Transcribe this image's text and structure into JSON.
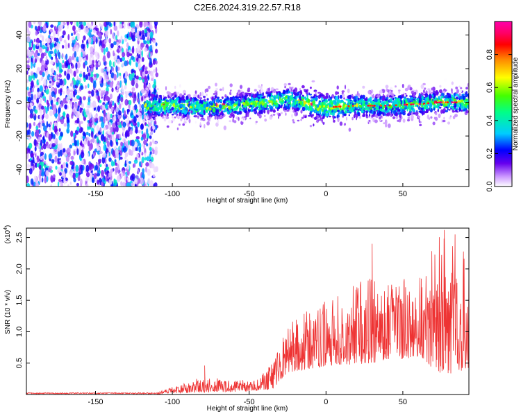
{
  "figure": {
    "title": "C2E6.2024.319.22.57.R18"
  },
  "chart_data": [
    {
      "type": "heatmap",
      "title": "C2E6.2024.319.22.57.R18",
      "xlabel": "Height of straight line (km)",
      "ylabel": "Frequency (Hz)",
      "xlim": [
        -195,
        93
      ],
      "ylim": [
        -50,
        48
      ],
      "xticks": [
        -150,
        -100,
        -50,
        0,
        50
      ],
      "yticks": [
        -40,
        -20,
        0,
        20,
        40
      ],
      "colorbar": {
        "label": "Normalized spectral amplitude",
        "range": [
          0,
          1
        ],
        "ticks": [
          0.0,
          0.2,
          0.4,
          0.6,
          0.8
        ],
        "colormap": [
          "#ffffff",
          "#cc99ff",
          "#6600ee",
          "#0000ff",
          "#00ccff",
          "#00ff88",
          "#44ff00",
          "#ffff00",
          "#ff8800",
          "#ff0000",
          "#ff0066",
          "#ff00aa"
        ]
      },
      "regions": [
        {
          "name": "noise",
          "x": [
            -195,
            -110
          ],
          "y": [
            -50,
            48
          ],
          "amplitude": 0.15
        },
        {
          "name": "signal-ridge",
          "x": [
            -118,
            93
          ],
          "y": [
            -5,
            3
          ],
          "amplitude_peak": 0.9
        }
      ],
      "ridge_center": [
        [
          -118,
          -2
        ],
        [
          -100,
          -2
        ],
        [
          -80,
          -3
        ],
        [
          -60,
          -2
        ],
        [
          -40,
          0
        ],
        [
          -25,
          2
        ],
        [
          -10,
          -1
        ],
        [
          0,
          -3
        ],
        [
          20,
          -2
        ],
        [
          40,
          -2
        ],
        [
          60,
          -1
        ],
        [
          75,
          0
        ],
        [
          93,
          0
        ]
      ]
    },
    {
      "type": "line",
      "xlabel": "Height of straight line (km)",
      "ylabel": "SNR (10 * v/v)",
      "y_multiplier": "(x10^4)",
      "xlim": [
        -195,
        93
      ],
      "ylim": [
        0,
        2.65
      ],
      "xticks": [
        -150,
        -100,
        -50,
        0,
        50
      ],
      "yticks": [
        0.5,
        1.0,
        1.5,
        2.0,
        2.5
      ],
      "ytick_labels": [
        "0.5",
        "1.0",
        "1.5",
        "2.0",
        "2.5"
      ],
      "series": [
        {
          "color": "#ee3333",
          "envelope": [
            [
              -195,
              0.02
            ],
            [
              -110,
              0.03
            ],
            [
              -100,
              0.12
            ],
            [
              -80,
              0.3
            ],
            [
              -60,
              0.22
            ],
            [
              -45,
              0.25
            ],
            [
              -35,
              0.5
            ],
            [
              -25,
              1.1
            ],
            [
              -15,
              1.3
            ],
            [
              0,
              1.5
            ],
            [
              15,
              1.7
            ],
            [
              30,
              1.9
            ],
            [
              45,
              1.8
            ],
            [
              60,
              1.9
            ],
            [
              75,
              2.6
            ],
            [
              93,
              2.2
            ]
          ],
          "baseline": [
            [
              -195,
              0.0
            ],
            [
              -110,
              0.0
            ],
            [
              -100,
              0.02
            ],
            [
              -60,
              0.04
            ],
            [
              -35,
              0.08
            ],
            [
              -25,
              0.35
            ],
            [
              0,
              0.45
            ],
            [
              30,
              0.5
            ],
            [
              60,
              0.6
            ],
            [
              75,
              0.3
            ],
            [
              93,
              0.4
            ]
          ],
          "peaks": [
            [
              -79,
              0.46
            ],
            [
              30,
              2.4
            ],
            [
              77,
              2.62
            ],
            [
              84,
              2.55
            ]
          ]
        }
      ]
    }
  ]
}
